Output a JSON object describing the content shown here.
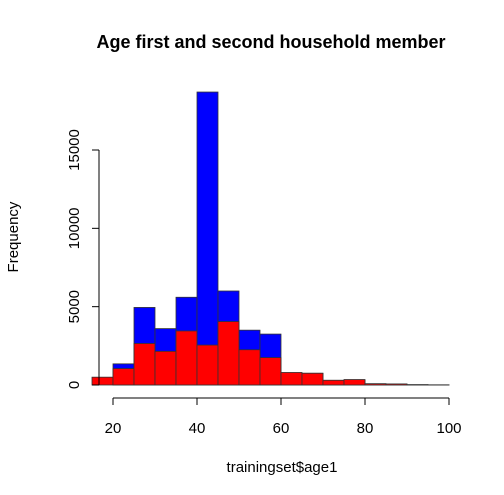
{
  "chart_data": {
    "type": "bar",
    "title": "Age first and second household member",
    "xlabel": "trainingset$age1",
    "ylabel": "Frequency",
    "xlim": [
      10,
      100
    ],
    "ylim": [
      0,
      19000
    ],
    "x_ticks": [
      20,
      40,
      60,
      80,
      100
    ],
    "y_ticks": [
      0,
      5000,
      10000,
      15000
    ],
    "grid": false,
    "bin_edges": [
      15,
      20,
      25,
      30,
      35,
      40,
      45,
      50,
      55,
      60,
      65,
      70,
      75,
      80,
      85,
      90,
      95,
      100
    ],
    "series": [
      {
        "color": "#0000ff",
        "values": [
          0,
          1350,
          4950,
          3600,
          5600,
          18700,
          6000,
          3500,
          3250,
          750,
          750,
          300,
          300,
          80,
          60,
          20,
          10
        ]
      },
      {
        "color": "#ff0000",
        "values": [
          500,
          1050,
          2650,
          2150,
          3450,
          2550,
          4050,
          2250,
          1750,
          800,
          750,
          300,
          350,
          80,
          70,
          20,
          10
        ]
      }
    ]
  }
}
